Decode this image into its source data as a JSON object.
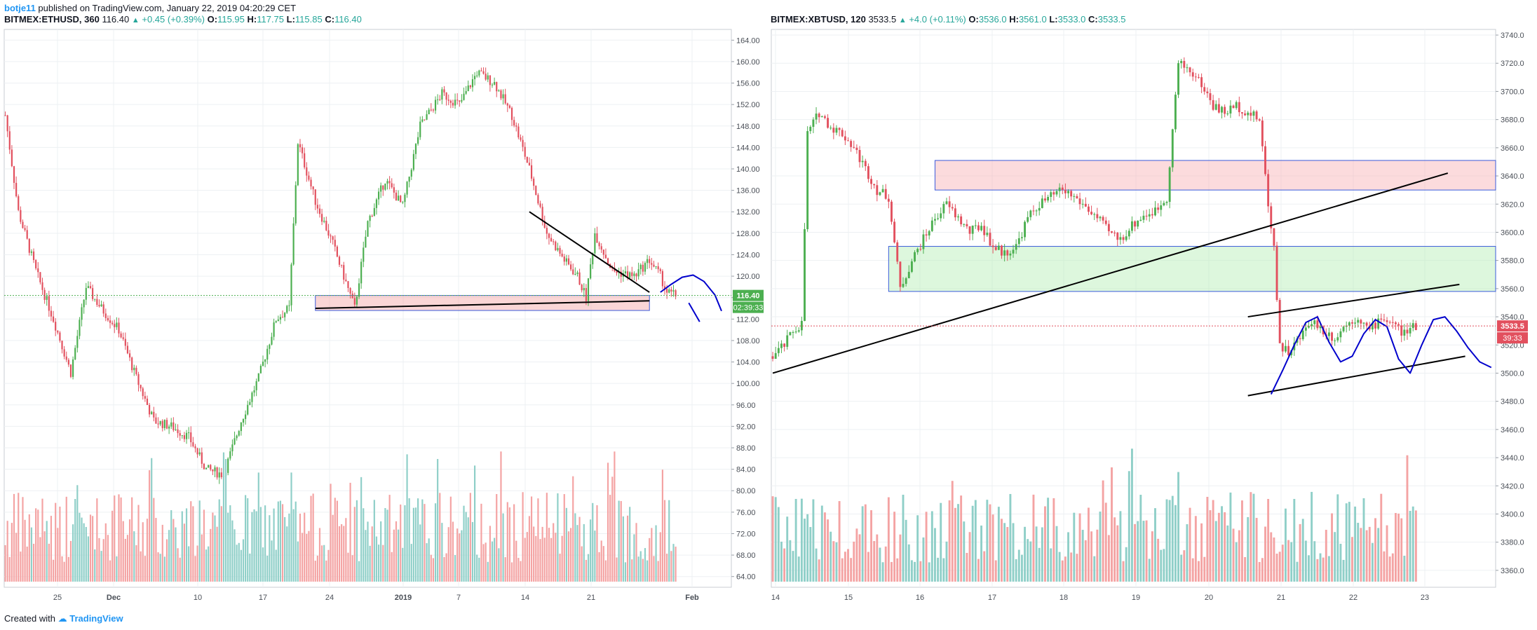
{
  "header": {
    "author": "botje11",
    "published": "published on TradingView.com, January 22, 2019 04:20:29 CET"
  },
  "footer": {
    "created": "Created with",
    "brand": "TradingView"
  },
  "colors": {
    "up": "#4caf50",
    "down": "#e2505e",
    "vol_up": "#8fcfc8",
    "vol_down": "#f4a3a3",
    "label_up": "#4caf50",
    "label_down": "#e2505e",
    "grid": "#edf0f3"
  },
  "chart_data": [
    {
      "type": "candlestick",
      "symbol": "BITMEX:ETHUSD, 360",
      "last": "116.40",
      "change": "+0.45 (+0.39%)",
      "ohlc": {
        "O": "115.95",
        "H": "117.75",
        "L": "115.85",
        "C": "116.40"
      },
      "price_label": "116.40",
      "countdown_label": "02:39:33",
      "ylim": [
        62,
        166
      ],
      "y_ticks": [
        "64.00",
        "68.00",
        "72.00",
        "76.00",
        "80.00",
        "84.00",
        "88.00",
        "92.00",
        "96.00",
        "100.00",
        "104.00",
        "108.00",
        "112.00",
        "116.00",
        "120.00",
        "124.00",
        "128.00",
        "132.00",
        "136.00",
        "140.00",
        "144.00",
        "148.00",
        "152.00",
        "156.00",
        "160.00",
        "164.00"
      ],
      "x_ticks": [
        "25",
        "Dec",
        "10",
        "17",
        "24",
        "2019",
        "7",
        "14",
        "21",
        "Feb"
      ],
      "anchors": [
        [
          0,
          150
        ],
        [
          6,
          132
        ],
        [
          14,
          121
        ],
        [
          22,
          112
        ],
        [
          30,
          102
        ],
        [
          37,
          118
        ],
        [
          44,
          114
        ],
        [
          52,
          110
        ],
        [
          60,
          101
        ],
        [
          68,
          93
        ],
        [
          76,
          92
        ],
        [
          84,
          90
        ],
        [
          92,
          84
        ],
        [
          100,
          83
        ],
        [
          108,
          93
        ],
        [
          116,
          101
        ],
        [
          124,
          112
        ],
        [
          130,
          114
        ],
        [
          134,
          145
        ],
        [
          142,
          134
        ],
        [
          150,
          126
        ],
        [
          160,
          114
        ],
        [
          166,
          130
        ],
        [
          174,
          138
        ],
        [
          182,
          133
        ],
        [
          190,
          148
        ],
        [
          200,
          154
        ],
        [
          208,
          152
        ],
        [
          216,
          158
        ],
        [
          224,
          156
        ],
        [
          232,
          150
        ],
        [
          240,
          140
        ],
        [
          248,
          128
        ],
        [
          256,
          123
        ],
        [
          262,
          120
        ],
        [
          266,
          116
        ],
        [
          270,
          128
        ],
        [
          278,
          121
        ],
        [
          288,
          120
        ],
        [
          295,
          123
        ],
        [
          300,
          120
        ],
        [
          303,
          117
        ],
        [
          307,
          116.4
        ]
      ],
      "resistance_line": [
        [
          240,
          132
        ],
        [
          295,
          117
        ]
      ],
      "support_line": [
        [
          142,
          114
        ],
        [
          295,
          115.4
        ]
      ],
      "zone": {
        "x": [
          142,
          295
        ],
        "y": [
          113.6,
          116.4
        ]
      },
      "projection": [
        [
          300,
          117
        ],
        [
          305,
          118.5
        ],
        [
          310,
          119.8
        ],
        [
          315,
          120.2
        ],
        [
          320,
          119
        ],
        [
          325,
          116.5
        ],
        [
          328,
          113.5
        ]
      ],
      "projection_down": [
        [
          313,
          115
        ],
        [
          318,
          111.5
        ]
      ]
    },
    {
      "type": "candlestick",
      "symbol": "BITMEX:XBTUSD, 120",
      "last": "3533.5",
      "change": "+4.0 (+0.11%)",
      "ohlc": {
        "O": "3536.0",
        "H": "3561.0",
        "L": "3533.0",
        "C": "3533.5"
      },
      "price_label": "3533.5",
      "countdown_label": "39:33",
      "ylim": [
        3348,
        3744
      ],
      "y_ticks": [
        "3360.0",
        "3380.0",
        "3400.0",
        "3420.0",
        "3440.0",
        "3460.0",
        "3480.0",
        "3500.0",
        "3520.0",
        "3540.0",
        "3560.0",
        "3580.0",
        "3600.0",
        "3620.0",
        "3640.0",
        "3660.0",
        "3680.0",
        "3700.0",
        "3720.0",
        "3740.0"
      ],
      "x_ticks": [
        "14",
        "15",
        "16",
        "17",
        "18",
        "19",
        "20",
        "21",
        "22",
        "23"
      ],
      "anchors": [
        [
          0,
          3512
        ],
        [
          4,
          3520
        ],
        [
          7,
          3530
        ],
        [
          10,
          3535
        ],
        [
          12,
          3670
        ],
        [
          16,
          3685
        ],
        [
          20,
          3675
        ],
        [
          24,
          3670
        ],
        [
          28,
          3660
        ],
        [
          32,
          3645
        ],
        [
          36,
          3630
        ],
        [
          40,
          3625
        ],
        [
          44,
          3560
        ],
        [
          48,
          3580
        ],
        [
          52,
          3595
        ],
        [
          56,
          3610
        ],
        [
          60,
          3620
        ],
        [
          64,
          3610
        ],
        [
          68,
          3600
        ],
        [
          72,
          3605
        ],
        [
          76,
          3590
        ],
        [
          80,
          3585
        ],
        [
          84,
          3590
        ],
        [
          88,
          3610
        ],
        [
          92,
          3620
        ],
        [
          96,
          3625
        ],
        [
          100,
          3630
        ],
        [
          104,
          3625
        ],
        [
          108,
          3618
        ],
        [
          112,
          3610
        ],
        [
          116,
          3600
        ],
        [
          120,
          3595
        ],
        [
          124,
          3605
        ],
        [
          128,
          3612
        ],
        [
          132,
          3615
        ],
        [
          136,
          3625
        ],
        [
          140,
          3720
        ],
        [
          144,
          3715
        ],
        [
          148,
          3705
        ],
        [
          152,
          3690
        ],
        [
          156,
          3685
        ],
        [
          160,
          3690
        ],
        [
          164,
          3685
        ],
        [
          168,
          3680
        ],
        [
          171,
          3620
        ],
        [
          173,
          3590
        ],
        [
          175,
          3520
        ],
        [
          178,
          3515
        ],
        [
          182,
          3525
        ],
        [
          186,
          3538
        ],
        [
          190,
          3530
        ],
        [
          194,
          3525
        ],
        [
          198,
          3535
        ],
        [
          202,
          3540
        ],
        [
          206,
          3530
        ],
        [
          210,
          3540
        ],
        [
          214,
          3535
        ],
        [
          218,
          3528
        ],
        [
          222,
          3533.5
        ]
      ],
      "wide_trend_line": [
        [
          0,
          3500
        ],
        [
          233,
          3642
        ]
      ],
      "channel_upper": [
        [
          164,
          3540
        ],
        [
          237,
          3563
        ]
      ],
      "channel_lower": [
        [
          164,
          3484
        ],
        [
          239,
          3512
        ]
      ],
      "zone_red": {
        "x": [
          56,
          250
        ],
        "y": [
          3630,
          3651
        ]
      },
      "zone_green": {
        "x": [
          40,
          250
        ],
        "y": [
          3558,
          3590
        ]
      },
      "projection": [
        [
          172,
          3485
        ],
        [
          176,
          3502
        ],
        [
          180,
          3520
        ],
        [
          184,
          3536
        ],
        [
          188,
          3540
        ],
        [
          192,
          3522
        ],
        [
          196,
          3508
        ],
        [
          200,
          3512
        ],
        [
          204,
          3528
        ],
        [
          208,
          3538
        ],
        [
          212,
          3533
        ],
        [
          216,
          3510
        ],
        [
          220,
          3500
        ],
        [
          224,
          3520
        ],
        [
          228,
          3538
        ],
        [
          232,
          3540
        ],
        [
          236,
          3530
        ],
        [
          240,
          3518
        ],
        [
          244,
          3508
        ],
        [
          248,
          3504
        ]
      ]
    }
  ]
}
